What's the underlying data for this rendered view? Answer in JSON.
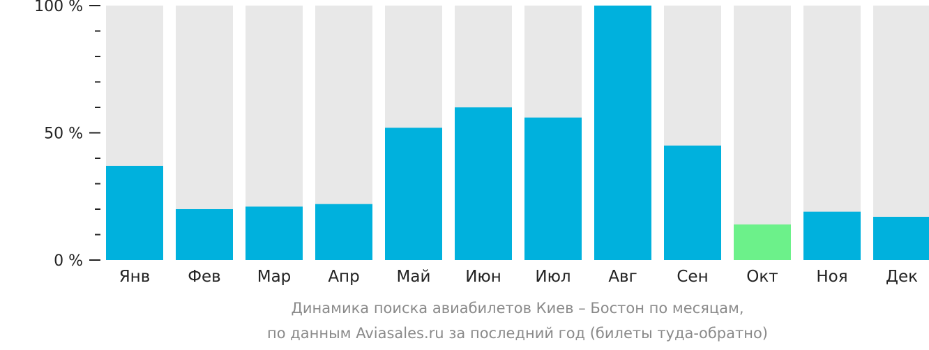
{
  "chart_data": {
    "type": "bar",
    "categories": [
      "Янв",
      "Фев",
      "Мар",
      "Апр",
      "Май",
      "Июн",
      "Июл",
      "Авг",
      "Сен",
      "Окт",
      "Ноя",
      "Дек"
    ],
    "values": [
      37,
      20,
      21,
      22,
      52,
      60,
      56,
      100,
      45,
      14,
      19,
      17
    ],
    "highlight_index": 9,
    "ylim": [
      0,
      100
    ],
    "y_ticks": [
      {
        "value": 0,
        "label": "0 %"
      },
      {
        "value": 50,
        "label": "50 %"
      },
      {
        "value": 100,
        "label": "100 %"
      }
    ],
    "colors": {
      "bar": "#00b1dd",
      "highlight": "#6cf18a",
      "background_bar": "#e8e8e8",
      "axis": "#222222"
    }
  },
  "caption": {
    "line1": "Динамика поиска авиабилетов Киев – Бостон по месяцам,",
    "line2": "по данным Aviasales.ru за последний год (билеты туда-обратно)"
  }
}
